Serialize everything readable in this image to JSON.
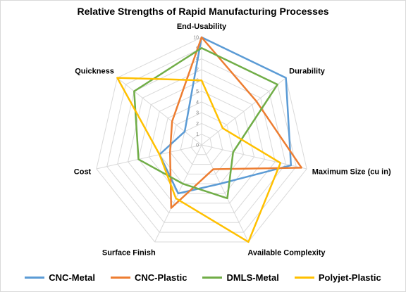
{
  "chart_data": {
    "type": "radar",
    "title": "Relative Strengths of Rapid Manufacturing Processes",
    "categories": [
      "End-Usability",
      "Durability",
      "Maximum Size (cu in)",
      "Available Complexity",
      "Surface Finish",
      "Cost",
      "Quickness"
    ],
    "ticks": [
      "0",
      "1",
      "2",
      "3",
      "4",
      "5",
      "6",
      "7",
      "8",
      "9",
      "10"
    ],
    "rlim": [
      0,
      10
    ],
    "grid": true,
    "legend_position": "bottom",
    "series": [
      {
        "name": "CNC-Metal",
        "color": "#5b9bd5",
        "values": [
          10,
          10,
          8.5,
          4,
          5,
          4,
          2
        ]
      },
      {
        "name": "CNC-Plastic",
        "color": "#ed7d31",
        "values": [
          10,
          6.5,
          9.5,
          2.5,
          6.5,
          3,
          3.5
        ]
      },
      {
        "name": "DMLS-Metal",
        "color": "#70ad47",
        "values": [
          9,
          9,
          3,
          5.5,
          4,
          6,
          8
        ]
      },
      {
        "name": "Polyjet-Plastic",
        "color": "#ffc000",
        "values": [
          6,
          2.5,
          7.5,
          10,
          5.5,
          4,
          10
        ]
      }
    ]
  }
}
